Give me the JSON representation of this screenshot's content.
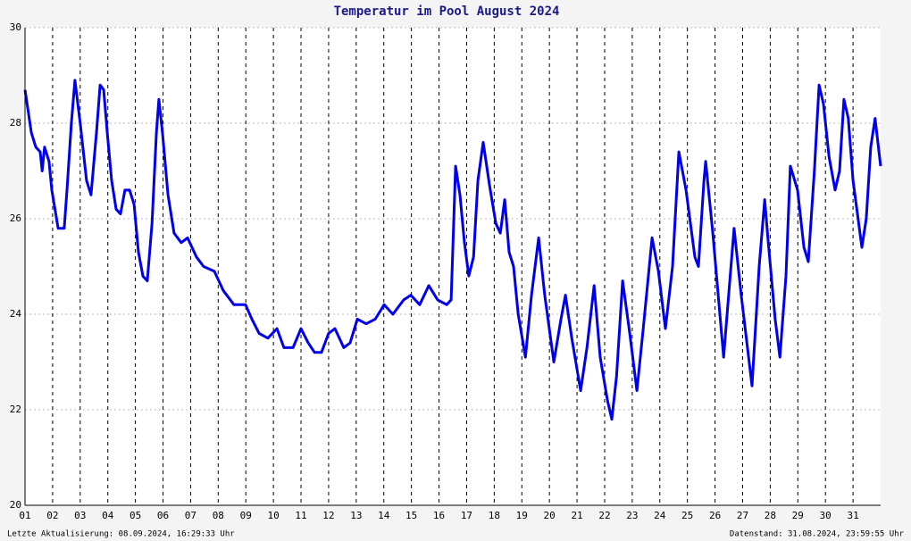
{
  "chart_data": {
    "type": "line",
    "title": "Temperatur im Pool August 2024",
    "x": [
      1.0,
      1.23,
      1.39,
      1.55,
      1.62,
      1.71,
      1.87,
      1.97,
      2.2,
      2.42,
      2.52,
      2.68,
      2.81,
      3.0,
      3.23,
      3.39,
      3.59,
      3.72,
      3.85,
      3.98,
      4.14,
      4.3,
      4.46,
      4.62,
      4.79,
      4.95,
      5.11,
      5.27,
      5.43,
      5.6,
      5.76,
      5.85,
      5.98,
      6.18,
      6.4,
      6.66,
      6.89,
      7.21,
      7.47,
      7.86,
      8.18,
      8.57,
      8.99,
      9.22,
      9.48,
      9.8,
      10.13,
      10.38,
      10.71,
      11.0,
      11.26,
      11.49,
      11.74,
      12.0,
      12.23,
      12.55,
      12.78,
      13.04,
      13.36,
      13.69,
      14.01,
      14.33,
      14.72,
      14.98,
      15.3,
      15.63,
      15.95,
      16.28,
      16.44,
      16.6,
      16.76,
      16.92,
      17.08,
      17.25,
      17.41,
      17.6,
      17.83,
      18.06,
      18.22,
      18.38,
      18.54,
      18.7,
      18.87,
      19.13,
      19.35,
      19.61,
      19.83,
      20.16,
      20.42,
      20.58,
      20.81,
      21.13,
      21.36,
      21.62,
      21.84,
      22.1,
      22.26,
      22.43,
      22.65,
      22.91,
      23.17,
      23.4,
      23.72,
      23.95,
      24.2,
      24.46,
      24.69,
      24.95,
      25.27,
      25.4,
      25.6,
      25.66,
      25.92,
      26.31,
      26.69,
      26.95,
      27.34,
      27.6,
      27.8,
      27.93,
      28.18,
      28.35,
      28.57,
      28.73,
      28.99,
      29.22,
      29.38,
      29.6,
      29.77,
      29.93,
      30.13,
      30.35,
      30.51,
      30.67,
      30.83,
      31.0,
      31.32,
      31.48,
      31.64,
      31.8,
      32.0
    ],
    "values": [
      28.7,
      27.8,
      27.5,
      27.4,
      27.0,
      27.5,
      27.2,
      26.6,
      25.8,
      25.8,
      26.6,
      28.0,
      28.9,
      28.0,
      26.8,
      26.5,
      27.8,
      28.8,
      28.7,
      27.8,
      26.8,
      26.2,
      26.1,
      26.6,
      26.6,
      26.3,
      25.3,
      24.8,
      24.7,
      25.9,
      27.8,
      28.5,
      27.8,
      26.5,
      25.7,
      25.5,
      25.6,
      25.2,
      25.0,
      24.9,
      24.5,
      24.2,
      24.2,
      23.9,
      23.6,
      23.5,
      23.7,
      23.3,
      23.3,
      23.7,
      23.4,
      23.2,
      23.2,
      23.6,
      23.7,
      23.3,
      23.4,
      23.9,
      23.8,
      23.9,
      24.2,
      24.0,
      24.3,
      24.4,
      24.2,
      24.6,
      24.3,
      24.2,
      24.3,
      27.1,
      26.5,
      25.5,
      24.8,
      25.2,
      26.8,
      27.6,
      26.7,
      25.9,
      25.7,
      26.4,
      25.3,
      25.0,
      24.0,
      23.1,
      24.4,
      25.6,
      24.4,
      23.0,
      23.9,
      24.4,
      23.5,
      22.4,
      23.3,
      24.6,
      23.1,
      22.2,
      21.8,
      22.7,
      24.7,
      23.6,
      22.4,
      23.7,
      25.6,
      24.9,
      23.7,
      25.0,
      27.4,
      26.6,
      25.2,
      25.0,
      26.8,
      27.2,
      25.7,
      23.1,
      25.8,
      24.4,
      22.5,
      25.0,
      26.4,
      25.5,
      23.9,
      23.1,
      24.8,
      27.1,
      26.6,
      25.4,
      25.1,
      27.0,
      28.8,
      28.4,
      27.3,
      26.6,
      27.0,
      28.5,
      28.1,
      26.8,
      25.4,
      26.0,
      27.5,
      28.1,
      27.1
    ],
    "color": "#0000ee",
    "xlim": [
      1,
      32
    ],
    "xticks": [
      {
        "value": 1,
        "label": "01"
      },
      {
        "value": 2,
        "label": "02"
      },
      {
        "value": 3,
        "label": "03"
      },
      {
        "value": 4,
        "label": "04"
      },
      {
        "value": 5,
        "label": "05"
      },
      {
        "value": 6,
        "label": "06"
      },
      {
        "value": 7,
        "label": "07"
      },
      {
        "value": 8,
        "label": "08"
      },
      {
        "value": 9,
        "label": "09"
      },
      10,
      11,
      12,
      13,
      14,
      15,
      16,
      17,
      18,
      19,
      20,
      21,
      22,
      23,
      24,
      25,
      26,
      27,
      28,
      29,
      30,
      31
    ],
    "ylim": [
      20,
      30
    ],
    "yticks": [
      20,
      22,
      24,
      26,
      28,
      30
    ],
    "grid": true
  },
  "footer": {
    "last_update": "Letzte Aktualisierung: 08.09.2024, 16:29:33 Uhr",
    "data_as_of": "Datenstand: 31.08.2024, 23:59:55 Uhr"
  }
}
